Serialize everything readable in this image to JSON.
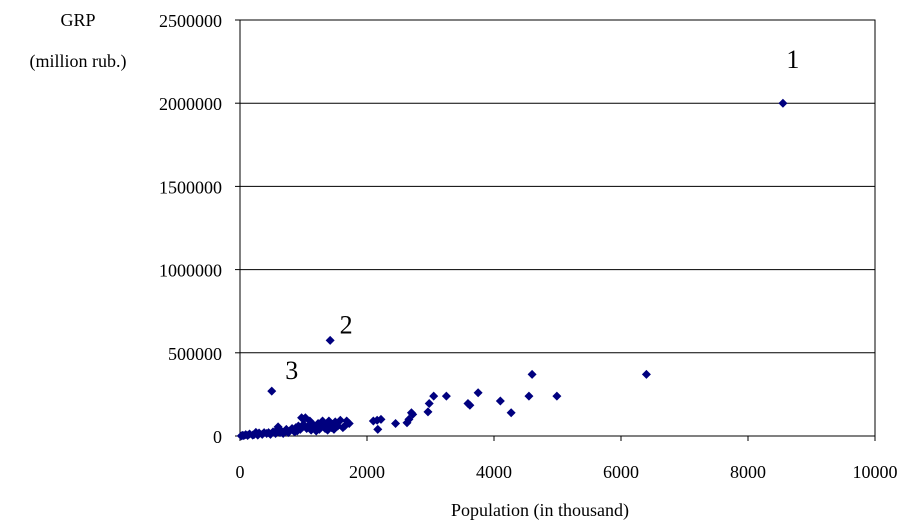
{
  "chart_data": {
    "type": "scatter",
    "ylabel_line1": "GRP",
    "ylabel_line2": "(million rub.)",
    "xlabel": "Population (in thousand)",
    "xlim": [
      0,
      10000
    ],
    "ylim": [
      0,
      2500000
    ],
    "xticks": [
      0,
      2000,
      4000,
      6000,
      8000,
      10000
    ],
    "yticks": [
      0,
      500000,
      1000000,
      1500000,
      2000000,
      2500000
    ],
    "xtick_labels": [
      "0",
      "2000",
      "4000",
      "6000",
      "8000",
      "10000"
    ],
    "ytick_labels": [
      "0",
      "500000",
      "1000000",
      "1500000",
      "2000000",
      "2500000"
    ],
    "grid": "horizontal",
    "marker_color": "#00007f",
    "annotations": [
      {
        "text": "1",
        "x": 8550,
        "y": 2000000
      },
      {
        "text": "2",
        "x": 1420,
        "y": 575000
      },
      {
        "text": "3",
        "x": 500,
        "y": 270000
      }
    ],
    "points": [
      [
        8550,
        2000000
      ],
      [
        6400,
        370000
      ],
      [
        4990,
        240000
      ],
      [
        4600,
        370000
      ],
      [
        4550,
        240000
      ],
      [
        4270,
        140000
      ],
      [
        4100,
        210000
      ],
      [
        3750,
        260000
      ],
      [
        3620,
        185000
      ],
      [
        3590,
        195000
      ],
      [
        3250,
        240000
      ],
      [
        3050,
        240000
      ],
      [
        2980,
        195000
      ],
      [
        2960,
        145000
      ],
      [
        2720,
        130000
      ],
      [
        2700,
        140000
      ],
      [
        2660,
        100000
      ],
      [
        2630,
        80000
      ],
      [
        2450,
        75000
      ],
      [
        2220,
        100000
      ],
      [
        2160,
        95000
      ],
      [
        2170,
        40000
      ],
      [
        2100,
        90000
      ],
      [
        1720,
        75000
      ],
      [
        1680,
        90000
      ],
      [
        1650,
        60000
      ],
      [
        1620,
        50000
      ],
      [
        1580,
        95000
      ],
      [
        1540,
        60000
      ],
      [
        1500,
        85000
      ],
      [
        1480,
        40000
      ],
      [
        1460,
        70000
      ],
      [
        1440,
        50000
      ],
      [
        1420,
        575000
      ],
      [
        1400,
        90000
      ],
      [
        1380,
        35000
      ],
      [
        1360,
        70000
      ],
      [
        1340,
        45000
      ],
      [
        1300,
        90000
      ],
      [
        1280,
        55000
      ],
      [
        1250,
        40000
      ],
      [
        1230,
        75000
      ],
      [
        1200,
        30000
      ],
      [
        1180,
        50000
      ],
      [
        1150,
        70000
      ],
      [
        1120,
        35000
      ],
      [
        1100,
        90000
      ],
      [
        1080,
        60000
      ],
      [
        1050,
        45000
      ],
      [
        1030,
        110000
      ],
      [
        1000,
        70000
      ],
      [
        990,
        55000
      ],
      [
        970,
        110000
      ],
      [
        950,
        40000
      ],
      [
        920,
        60000
      ],
      [
        900,
        30000
      ],
      [
        880,
        50000
      ],
      [
        860,
        25000
      ],
      [
        820,
        45000
      ],
      [
        780,
        30000
      ],
      [
        760,
        20000
      ],
      [
        730,
        40000
      ],
      [
        700,
        25000
      ],
      [
        680,
        15000
      ],
      [
        650,
        30000
      ],
      [
        630,
        20000
      ],
      [
        600,
        55000
      ],
      [
        580,
        35000
      ],
      [
        560,
        15000
      ],
      [
        520,
        25000
      ],
      [
        500,
        270000
      ],
      [
        480,
        10000
      ],
      [
        450,
        20000
      ],
      [
        420,
        15000
      ],
      [
        380,
        20000
      ],
      [
        350,
        10000
      ],
      [
        300,
        18000
      ],
      [
        280,
        5000
      ],
      [
        250,
        22000
      ],
      [
        220,
        8000
      ],
      [
        200,
        5000
      ],
      [
        150,
        12000
      ],
      [
        120,
        3000
      ],
      [
        90,
        8000
      ],
      [
        60,
        2000
      ],
      [
        40,
        4000
      ],
      [
        20,
        1000
      ]
    ]
  }
}
